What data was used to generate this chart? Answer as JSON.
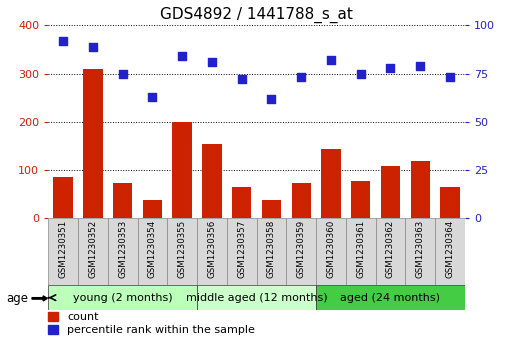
{
  "title": "GDS4892 / 1441788_s_at",
  "samples": [
    "GSM1230351",
    "GSM1230352",
    "GSM1230353",
    "GSM1230354",
    "GSM1230355",
    "GSM1230356",
    "GSM1230357",
    "GSM1230358",
    "GSM1230359",
    "GSM1230360",
    "GSM1230361",
    "GSM1230362",
    "GSM1230363",
    "GSM1230364"
  ],
  "counts": [
    85,
    310,
    73,
    38,
    200,
    153,
    65,
    38,
    72,
    143,
    77,
    108,
    118,
    63
  ],
  "percentiles": [
    92,
    89,
    75,
    63,
    84,
    81,
    72,
    62,
    73,
    82,
    75,
    78,
    79,
    73
  ],
  "bar_color": "#cc2200",
  "dot_color": "#2222cc",
  "ylim_left": [
    0,
    400
  ],
  "ylim_right": [
    0,
    100
  ],
  "yticks_left": [
    0,
    100,
    200,
    300,
    400
  ],
  "yticks_right": [
    0,
    25,
    50,
    75,
    100
  ],
  "groups": [
    {
      "label": "young (2 months)",
      "start": 0,
      "end": 5,
      "color": "#bbffbb"
    },
    {
      "label": "middle aged (12 months)",
      "start": 5,
      "end": 9,
      "color": "#ccffcc"
    },
    {
      "label": "aged (24 months)",
      "start": 9,
      "end": 14,
      "color": "#44cc44"
    }
  ],
  "age_label": "age",
  "legend_count_label": "count",
  "legend_pct_label": "percentile rank within the sample",
  "grid_color": "black",
  "bg_color": "#ffffff",
  "plot_bg": "#ffffff",
  "tick_label_color_left": "#cc2200",
  "tick_label_color_right": "#2222cc",
  "title_fontsize": 11,
  "tick_fontsize": 8,
  "group_label_fontsize": 8,
  "legend_fontsize": 8
}
